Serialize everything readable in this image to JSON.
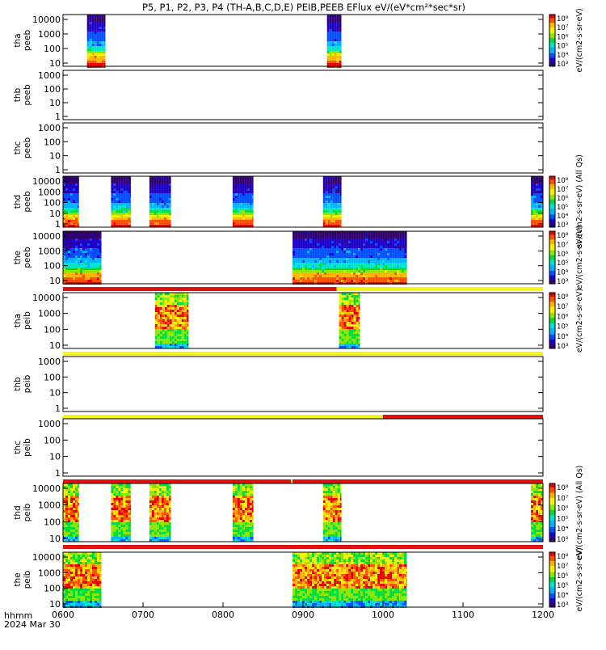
{
  "title": "P5, P1, P2, P3, P4 (TH-A,B,C,D,E) PEIB,PEEB EFlux eV/(eV*cm²*sec*sr)",
  "colors": {
    "spectrum": [
      "#32006e",
      "#1e00c8",
      "#0050ff",
      "#00b4ff",
      "#00e6c8",
      "#00dc3c",
      "#8ce600",
      "#f0f000",
      "#ffb400",
      "#ff5000",
      "#e60000"
    ],
    "flag_red": "#e01010",
    "flag_yellow": "#f5f516",
    "fill_black": "#000000"
  },
  "chart_data": {
    "type": "heatmap",
    "x_axis": {
      "range": [
        "0600",
        "1200"
      ],
      "ticks": [
        "0600",
        "0700",
        "0800",
        "0900",
        "1000",
        "1100",
        "1200"
      ],
      "label_top": "hhmm",
      "label_bottom": "2024 Mar 30"
    },
    "panels": [
      {
        "id": "tha-peeb",
        "ylabel": [
          "tha",
          "peeb"
        ],
        "yticks": [
          "10",
          "100",
          "1000",
          "10000"
        ],
        "colorbar": true,
        "cb_ticks": [
          "10³",
          "10⁴",
          "10⁵",
          "10⁶",
          "10⁷",
          "10⁸"
        ],
        "cb_label": "eV/(cm2-s-sr-eV)",
        "species": "electron",
        "intervals": [
          [
            0.3,
            0.53
          ],
          [
            3.3,
            3.48
          ]
        ],
        "flag_bar": null
      },
      {
        "id": "thb-peeb",
        "ylabel": [
          "thb",
          "peeb"
        ],
        "yticks": [
          "1",
          "10",
          "100",
          "1000"
        ],
        "colorbar": false,
        "intervals": [],
        "flag_bar": null
      },
      {
        "id": "thc-peeb",
        "ylabel": [
          "thc",
          "peeb"
        ],
        "yticks": [
          "1",
          "10",
          "100",
          "1000"
        ],
        "colorbar": false,
        "intervals": [],
        "flag_bar": null
      },
      {
        "id": "thd-peeb",
        "ylabel": [
          "thd",
          "peeb"
        ],
        "yticks": [
          "1",
          "10",
          "100",
          "1000",
          "10000"
        ],
        "colorbar": true,
        "cb_ticks": [
          "10³",
          "10⁴",
          "10⁵",
          "10⁶",
          "10⁷",
          "10⁸"
        ],
        "cb_label": "eV/(cm2-s-sr-eV) (All Qs)",
        "species": "electron",
        "intervals": [
          [
            0.0,
            0.2
          ],
          [
            0.6,
            0.85
          ],
          [
            1.08,
            1.35
          ],
          [
            2.12,
            2.38
          ],
          [
            3.25,
            3.48
          ],
          [
            5.85,
            6.0
          ]
        ],
        "flag_bar": null
      },
      {
        "id": "the-peeb",
        "ylabel": [
          "the",
          "peeb"
        ],
        "yticks": [
          "10",
          "100",
          "1000",
          "10000"
        ],
        "colorbar": true,
        "cb_ticks": [
          "10³",
          "10⁴",
          "10⁵",
          "10⁶",
          "10⁷",
          "10⁸"
        ],
        "cb_label": "eV/(cm2-s-sr-eV)",
        "species": "electron",
        "intervals": [
          [
            0.0,
            0.48
          ],
          [
            2.87,
            4.3
          ]
        ],
        "flag_bar": [
          [
            0.0,
            3.42,
            "red"
          ],
          [
            3.42,
            6.0,
            "yellow"
          ]
        ]
      },
      {
        "id": "tha-peib",
        "ylabel": [
          "tha",
          "peib"
        ],
        "yticks": [
          "10",
          "100",
          "1000",
          "10000"
        ],
        "colorbar": true,
        "cb_ticks": [
          "10³",
          "10⁴",
          "10⁵",
          "10⁶",
          "10⁷",
          "10⁸"
        ],
        "cb_label": "eV/(cm2-s-sr-eV)",
        "species": "ion",
        "intervals": [
          [
            1.15,
            1.57
          ],
          [
            3.45,
            3.71
          ]
        ],
        "flag_bar": [
          [
            0.0,
            6.0,
            "yellow"
          ]
        ]
      },
      {
        "id": "thb-peib",
        "ylabel": [
          "thb",
          "peib"
        ],
        "yticks": [
          "1",
          "10",
          "100",
          "1000"
        ],
        "colorbar": false,
        "intervals": [],
        "flag_bar": [
          [
            0.0,
            4.0,
            "yellow"
          ],
          [
            4.0,
            6.0,
            "red"
          ]
        ]
      },
      {
        "id": "thc-peib",
        "ylabel": [
          "thc",
          "peib"
        ],
        "yticks": [
          "1",
          "10",
          "100",
          "1000"
        ],
        "colorbar": false,
        "intervals": [],
        "flag_bar": [
          [
            0.0,
            2.85,
            "red"
          ],
          [
            2.85,
            2.87,
            "yellow"
          ],
          [
            2.87,
            6.0,
            "red"
          ]
        ]
      },
      {
        "id": "thd-peib",
        "ylabel": [
          "thd",
          "peib"
        ],
        "yticks": [
          "10",
          "100",
          "1000",
          "10000"
        ],
        "colorbar": true,
        "cb_ticks": [
          "10³",
          "10⁴",
          "10⁵",
          "10⁶",
          "10⁷",
          "10⁸"
        ],
        "cb_label": "eV/(cm2-s-sr-eV) (All Qs)",
        "species": "ion",
        "intervals": [
          [
            0.0,
            0.2
          ],
          [
            0.6,
            0.85
          ],
          [
            1.08,
            1.35
          ],
          [
            2.12,
            2.38
          ],
          [
            3.25,
            3.48
          ],
          [
            5.85,
            6.0
          ]
        ],
        "flag_bar": [
          [
            0.0,
            6.0,
            "red"
          ]
        ]
      },
      {
        "id": "the-peib",
        "ylabel": [
          "the",
          "peib"
        ],
        "yticks": [
          "10",
          "100",
          "1000",
          "10000"
        ],
        "colorbar": true,
        "cb_ticks": [
          "10³",
          "10⁴",
          "10⁵",
          "10⁶",
          "10⁷",
          "10⁸"
        ],
        "cb_label": "eV/(cm2-s-sr-eV)",
        "species": "ion",
        "intervals": [
          [
            0.0,
            0.48
          ],
          [
            2.87,
            4.3
          ]
        ],
        "flag_bar": null
      }
    ]
  }
}
